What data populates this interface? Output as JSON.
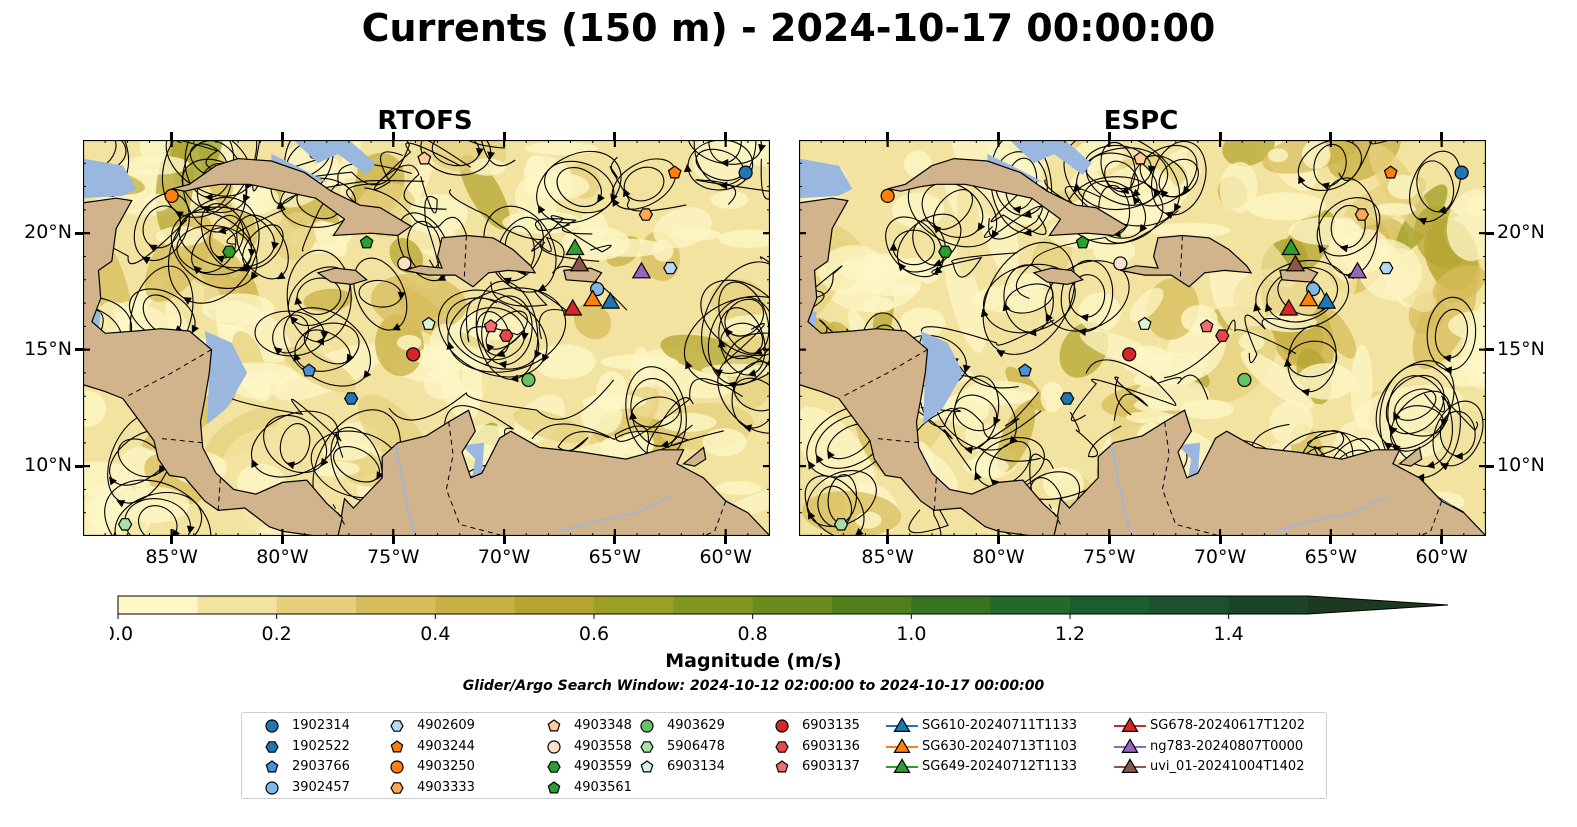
{
  "title": "Currents (150 m) - 2024-10-17 00:00:00",
  "panels": [
    {
      "id": "rtofs",
      "title": "RTOFS"
    },
    {
      "id": "espc",
      "title": "ESPC"
    }
  ],
  "colors": {
    "land": "#d2b48c",
    "shallow": "#9ab7e0",
    "cmap": [
      "#fdf6c6",
      "#f3e3a0",
      "#e6d07e",
      "#d7bc5c",
      "#c8b044",
      "#b4a532",
      "#9c9f26",
      "#83961d",
      "#6a8c1a",
      "#4f8018",
      "#36741f",
      "#226a2a",
      "#1a5e2f",
      "#1b512c",
      "#1c4527",
      "#1d3a21"
    ]
  },
  "chart_data": {
    "type": "streamplot-map",
    "xlim": [
      -89,
      -58
    ],
    "ylim": [
      7,
      24
    ],
    "x_ticks": [
      "85°W",
      "80°W",
      "75°W",
      "70°W",
      "65°W",
      "60°W"
    ],
    "x_tick_values": [
      -85,
      -80,
      -75,
      -70,
      -65,
      -60
    ],
    "y_ticks": [
      "10°N",
      "15°N",
      "20°N"
    ],
    "y_tick_values": [
      10,
      15,
      20
    ],
    "colorbar": {
      "label": "Magnitude (m/s)",
      "min": 0.0,
      "max": 1.5,
      "extend": "max",
      "tick_labels": [
        "0.0",
        "0.2",
        "0.4",
        "0.6",
        "0.8",
        "1.0",
        "1.2",
        "1.4"
      ],
      "tick_values": [
        0.0,
        0.2,
        0.4,
        0.6,
        0.8,
        1.0,
        1.2,
        1.4
      ]
    },
    "search_window": "Glider/Argo Search Window: 2024-10-12 02:00:00 to 2024-10-17 00:00:00",
    "platforms": [
      {
        "name": "1902314",
        "marker": "circle",
        "color": "#1f77b4",
        "lon": -59.1,
        "lat": 22.6
      },
      {
        "name": "1902522",
        "marker": "hexagon",
        "color": "#1f77b4",
        "lon": -76.9,
        "lat": 12.9
      },
      {
        "name": "2903766",
        "marker": "pentagon",
        "color": "#4a90d9",
        "lon": -78.8,
        "lat": 14.1
      },
      {
        "name": "3902457",
        "marker": "circle",
        "color": "#7fb8e6",
        "lon": -65.8,
        "lat": 17.6
      },
      {
        "name": "4902609",
        "marker": "hexagon",
        "color": "#b8d8f0",
        "lon": -62.5,
        "lat": 18.5
      },
      {
        "name": "4903244",
        "marker": "pentagon",
        "color": "#ff7f0e",
        "lon": -62.3,
        "lat": 22.6
      },
      {
        "name": "4903250",
        "marker": "circle",
        "color": "#ff7f0e",
        "lon": -85.0,
        "lat": 21.6
      },
      {
        "name": "4903333",
        "marker": "hexagon",
        "color": "#ffa756",
        "lon": -63.6,
        "lat": 20.8
      },
      {
        "name": "4903348",
        "marker": "pentagon",
        "color": "#ffcc99",
        "lon": -73.6,
        "lat": 23.2
      },
      {
        "name": "4903558",
        "marker": "circle",
        "color": "#ffe0c8",
        "lon": -74.5,
        "lat": 18.7
      },
      {
        "name": "4903559",
        "marker": "hexagon",
        "color": "#2ca02c",
        "lon": -82.4,
        "lat": 19.2
      },
      {
        "name": "4903561",
        "marker": "pentagon",
        "color": "#2ca02c",
        "lon": -76.2,
        "lat": 19.6
      },
      {
        "name": "4903629",
        "marker": "circle",
        "color": "#66c266",
        "lon": -68.9,
        "lat": 13.7
      },
      {
        "name": "5906478",
        "marker": "hexagon",
        "color": "#a6e0a6",
        "lon": -87.1,
        "lat": 7.5
      },
      {
        "name": "6903134",
        "marker": "pentagon",
        "color": "#d8f5d8",
        "lon": -73.4,
        "lat": 16.1
      },
      {
        "name": "6903135",
        "marker": "circle",
        "color": "#d62728",
        "lon": -74.1,
        "lat": 14.8
      },
      {
        "name": "6903136",
        "marker": "hexagon",
        "color": "#e8474a",
        "lon": -69.9,
        "lat": 15.6
      },
      {
        "name": "6903137",
        "marker": "pentagon",
        "color": "#f07070",
        "lon": -70.6,
        "lat": 16.0
      },
      {
        "name": "SG610-20240711T1133",
        "marker": "triangle",
        "color": "#1f77b4",
        "lon": -65.2,
        "lat": 17.0
      },
      {
        "name": "SG630-20240713T1103",
        "marker": "triangle",
        "color": "#ff7f0e",
        "lon": -66.0,
        "lat": 17.1
      },
      {
        "name": "SG649-20240712T1133",
        "marker": "triangle",
        "color": "#2ca02c",
        "lon": -66.8,
        "lat": 19.3
      },
      {
        "name": "SG678-20240617T1202",
        "marker": "triangle",
        "color": "#d62728",
        "lon": -66.9,
        "lat": 16.7
      },
      {
        "name": "ng783-20240807T0000",
        "marker": "triangle",
        "color": "#9467bd",
        "lon": -63.8,
        "lat": 18.3
      },
      {
        "name": "uvi_01-20241004T1402",
        "marker": "triangle",
        "color": "#8c564b",
        "lon": -66.6,
        "lat": 18.6
      }
    ]
  }
}
